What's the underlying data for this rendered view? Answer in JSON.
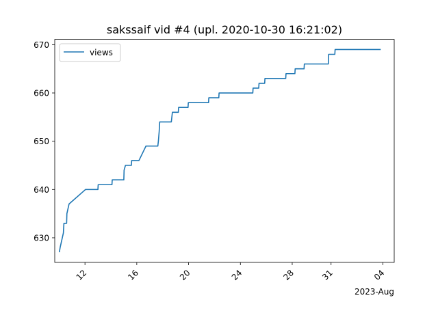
{
  "chart_data": {
    "type": "line",
    "title": "sakssaif vid #4 (upl. 2020-10-30 16:21:02)",
    "xlabel": "",
    "ylabel": "",
    "x_axis_offset_label": "2023-Aug",
    "x_ticks": [
      {
        "date": "2023-07-12",
        "label": "12"
      },
      {
        "date": "2023-07-16",
        "label": "16"
      },
      {
        "date": "2023-07-20",
        "label": "20"
      },
      {
        "date": "2023-07-24",
        "label": "24"
      },
      {
        "date": "2023-07-28",
        "label": "28"
      },
      {
        "date": "2023-07-31",
        "label": "31"
      },
      {
        "date": "2023-08-04",
        "label": "04"
      }
    ],
    "y_ticks": [
      630,
      640,
      650,
      660,
      670
    ],
    "xlim": [
      "2023-07-09T16:00",
      "2023-08-04T21:00"
    ],
    "ylim": [
      624.9,
      671.1
    ],
    "grid": false,
    "legend_position": "top-left",
    "series": [
      {
        "name": "views",
        "color": "#1f77b4",
        "points": [
          [
            "2023-07-10T00:30",
            627
          ],
          [
            "2023-07-10T02:00",
            628
          ],
          [
            "2023-07-10T04:00",
            629
          ],
          [
            "2023-07-10T06:00",
            630
          ],
          [
            "2023-07-10T08:00",
            631
          ],
          [
            "2023-07-10T09:00",
            633
          ],
          [
            "2023-07-10T14:00",
            633
          ],
          [
            "2023-07-10T14:30",
            635
          ],
          [
            "2023-07-10T16:30",
            636
          ],
          [
            "2023-07-10T18:30",
            637
          ],
          [
            "2023-07-12T01:00",
            640
          ],
          [
            "2023-07-13T00:00",
            640
          ],
          [
            "2023-07-13T00:30",
            641
          ],
          [
            "2023-07-14T02:00",
            641
          ],
          [
            "2023-07-14T02:30",
            642
          ],
          [
            "2023-07-15T00:00",
            642
          ],
          [
            "2023-07-15T00:30",
            644
          ],
          [
            "2023-07-15T03:00",
            645
          ],
          [
            "2023-07-15T14:00",
            645
          ],
          [
            "2023-07-15T14:30",
            646
          ],
          [
            "2023-07-16T04:00",
            646
          ],
          [
            "2023-07-16T17:00",
            649
          ],
          [
            "2023-07-17T15:00",
            649
          ],
          [
            "2023-07-17T16:00",
            650
          ],
          [
            "2023-07-17T17:30",
            652
          ],
          [
            "2023-07-17T18:30",
            654
          ],
          [
            "2023-07-18T16:00",
            654
          ],
          [
            "2023-07-18T17:00",
            655
          ],
          [
            "2023-07-18T18:00",
            656
          ],
          [
            "2023-07-19T05:00",
            656
          ],
          [
            "2023-07-19T05:30",
            657
          ],
          [
            "2023-07-19T23:00",
            657
          ],
          [
            "2023-07-19T23:30",
            658
          ],
          [
            "2023-07-21T13:00",
            658
          ],
          [
            "2023-07-21T13:30",
            659
          ],
          [
            "2023-07-22T08:00",
            659
          ],
          [
            "2023-07-22T08:30",
            660
          ],
          [
            "2023-07-24T23:00",
            660
          ],
          [
            "2023-07-24T23:30",
            661
          ],
          [
            "2023-07-25T10:00",
            661
          ],
          [
            "2023-07-25T10:30",
            662
          ],
          [
            "2023-07-25T21:00",
            662
          ],
          [
            "2023-07-25T21:30",
            663
          ],
          [
            "2023-07-27T12:00",
            663
          ],
          [
            "2023-07-27T12:30",
            664
          ],
          [
            "2023-07-28T05:00",
            664
          ],
          [
            "2023-07-28T05:30",
            665
          ],
          [
            "2023-07-28T22:00",
            665
          ],
          [
            "2023-07-28T22:30",
            666
          ],
          [
            "2023-07-30T19:00",
            666
          ],
          [
            "2023-07-30T19:30",
            668
          ],
          [
            "2023-07-31T07:00",
            668
          ],
          [
            "2023-07-31T07:30",
            669
          ],
          [
            "2023-08-03T20:00",
            669
          ]
        ]
      }
    ]
  }
}
